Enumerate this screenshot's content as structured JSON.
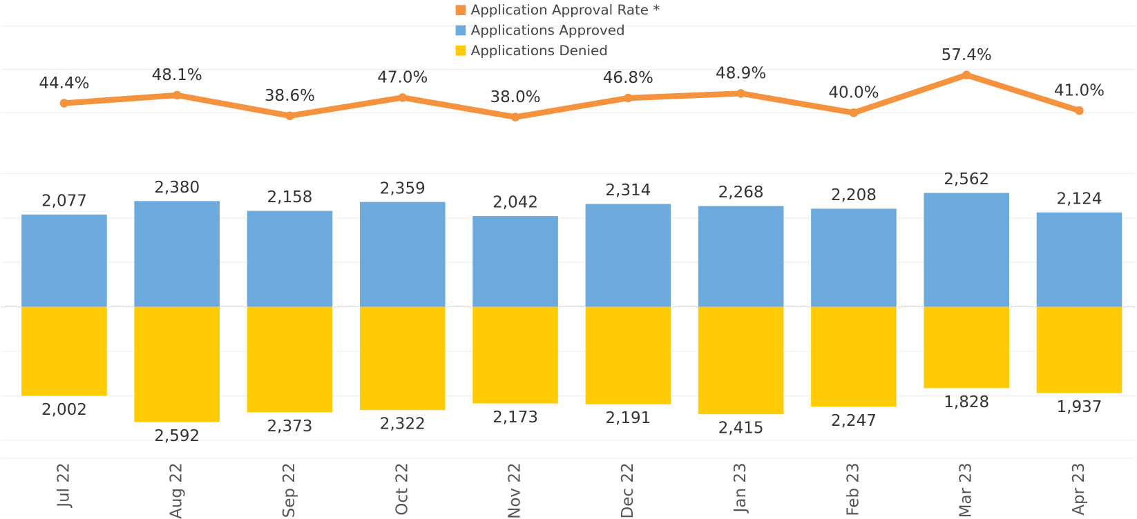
{
  "chart_data": {
    "type": "bar",
    "categories": [
      "Jul 22",
      "Aug 22",
      "Sep 22",
      "Oct 22",
      "Nov 22",
      "Dec 22",
      "Jan 23",
      "Feb 23",
      "Mar 23",
      "Apr 23"
    ],
    "series": [
      {
        "name": "Application Approval Rate *",
        "type": "line",
        "axis": "y2",
        "color": "#f5923e",
        "values": [
          44.4,
          48.1,
          38.6,
          47.0,
          38.0,
          46.8,
          48.9,
          40.0,
          57.4,
          41.0
        ],
        "value_labels": [
          "44.4%",
          "48.1%",
          "38.6%",
          "47.0%",
          "38.0%",
          "46.8%",
          "48.9%",
          "40.0%",
          "57.4%",
          "41.0%"
        ]
      },
      {
        "name": "Applications Approved",
        "type": "bar",
        "color": "#6caadd",
        "values": [
          2077,
          2380,
          2158,
          2359,
          2042,
          2314,
          2268,
          2208,
          2562,
          2124
        ],
        "value_labels": [
          "2,077",
          "2,380",
          "2,158",
          "2,359",
          "2,042",
          "2,314",
          "2,268",
          "2,208",
          "2,562",
          "2,124"
        ]
      },
      {
        "name": "Applications Denied",
        "type": "bar",
        "color": "#ffcb05",
        "values": [
          -2002,
          -2592,
          -2373,
          -2322,
          -2173,
          -2191,
          -2415,
          -2247,
          -1828,
          -1937
        ],
        "value_labels": [
          "2,002",
          "2,592",
          "2,373",
          "2,322",
          "2,173",
          "2,191",
          "2,415",
          "2,247",
          "1,828",
          "1,937"
        ]
      }
    ],
    "ylim": [
      -3000,
      3000
    ],
    "y2lim": [
      20,
      80
    ],
    "grid": true
  }
}
